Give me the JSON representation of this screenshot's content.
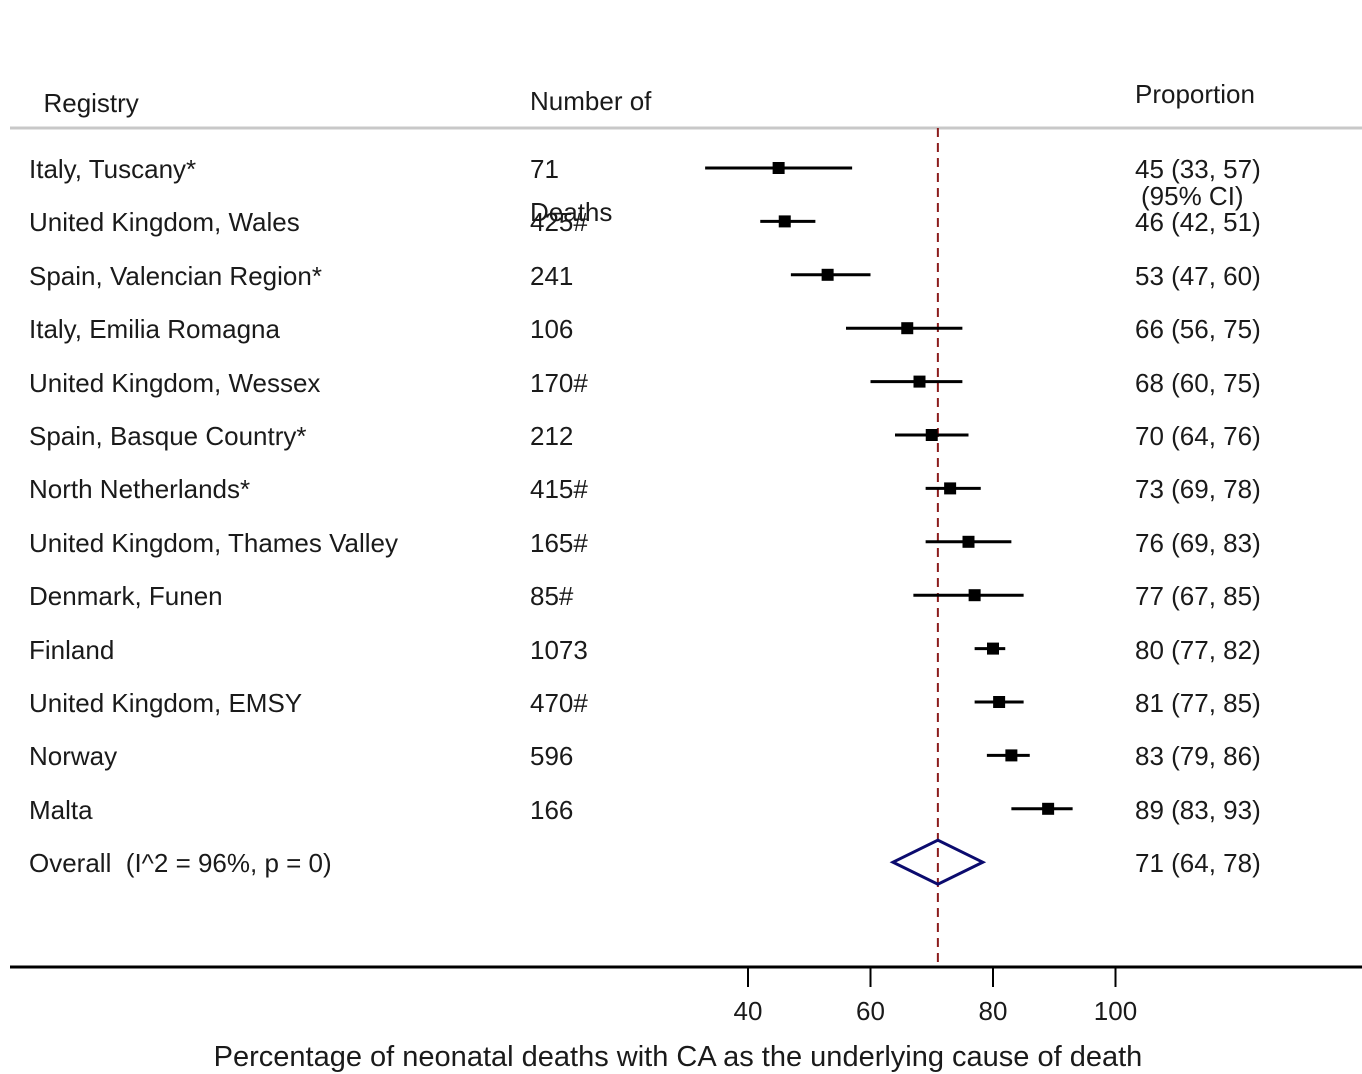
{
  "header": {
    "registry": "Registry",
    "deaths_line1": "Number of",
    "deaths_line2": "Deaths",
    "ci_line1": "Proportion",
    "ci_line2": "(95% CI)"
  },
  "chart_data": {
    "type": "forest",
    "xlabel": "Percentage of neonatal deaths with CA as the underlying cause of death",
    "xticks": [
      40,
      60,
      80,
      100
    ],
    "xlim": [
      14,
      122
    ],
    "reference_line": 71,
    "rows": [
      {
        "registry": "Italy, Tuscany*",
        "deaths": "71",
        "estimate": 45,
        "lower": 33,
        "upper": 57,
        "label": "45 (33, 57)"
      },
      {
        "registry": "United Kingdom, Wales",
        "deaths": "425#",
        "estimate": 46,
        "lower": 42,
        "upper": 51,
        "label": "46 (42, 51)"
      },
      {
        "registry": "Spain, Valencian Region*",
        "deaths": "241",
        "estimate": 53,
        "lower": 47,
        "upper": 60,
        "label": "53 (47, 60)"
      },
      {
        "registry": "Italy, Emilia Romagna",
        "deaths": "106",
        "estimate": 66,
        "lower": 56,
        "upper": 75,
        "label": "66 (56, 75)"
      },
      {
        "registry": "United Kingdom, Wessex",
        "deaths": "170#",
        "estimate": 68,
        "lower": 60,
        "upper": 75,
        "label": "68 (60, 75)"
      },
      {
        "registry": "Spain, Basque Country*",
        "deaths": "212",
        "estimate": 70,
        "lower": 64,
        "upper": 76,
        "label": "70 (64, 76)"
      },
      {
        "registry": "North Netherlands*",
        "deaths": "415#",
        "estimate": 73,
        "lower": 69,
        "upper": 78,
        "label": "73 (69, 78)"
      },
      {
        "registry": "United Kingdom, Thames Valley",
        "deaths": "165#",
        "estimate": 76,
        "lower": 69,
        "upper": 83,
        "label": "76 (69, 83)"
      },
      {
        "registry": "Denmark, Funen",
        "deaths": "85#",
        "estimate": 77,
        "lower": 67,
        "upper": 85,
        "label": "77 (67, 85)"
      },
      {
        "registry": "Finland",
        "deaths": "1073",
        "estimate": 80,
        "lower": 77,
        "upper": 82,
        "label": "80 (77, 82)"
      },
      {
        "registry": "United Kingdom, EMSY",
        "deaths": "470#",
        "estimate": 81,
        "lower": 77,
        "upper": 85,
        "label": "81 (77, 85)"
      },
      {
        "registry": "Norway",
        "deaths": "596",
        "estimate": 83,
        "lower": 79,
        "upper": 86,
        "label": "83 (79, 86)"
      },
      {
        "registry": "Malta",
        "deaths": "166",
        "estimate": 89,
        "lower": 83,
        "upper": 93,
        "label": "89 (83, 93)"
      }
    ],
    "overall": {
      "registry": "Overall  (I^2 = 96%, p = 0)",
      "deaths": "",
      "estimate": 71,
      "lower": 64,
      "upper": 78,
      "label": "71 (64, 78)"
    },
    "colors": {
      "marks": "#000000",
      "diamond": "#0b0b6e",
      "reference": "#8b1c1c",
      "separator": "#c8c8c8",
      "axis": "#000000"
    }
  }
}
